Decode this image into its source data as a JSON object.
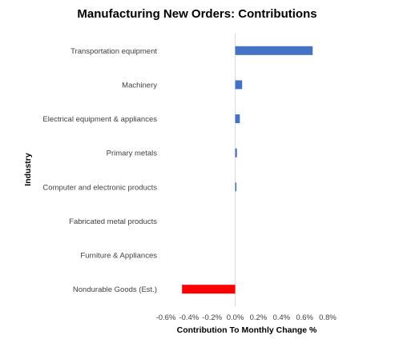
{
  "chart_data": {
    "type": "bar",
    "orientation": "horizontal",
    "title": "Manufacturing New Orders: Contributions",
    "xlabel": "Contribution To Monthly Change %",
    "ylabel": "Industry",
    "categories": [
      "Transportation equipment",
      "Machinery",
      "Electrical equipment & appliances",
      "Primary metals",
      "Computer and electronic products",
      "Fabricated metal products",
      "Furniture & Appliances",
      "Nondurable Goods (Est.)"
    ],
    "values": [
      0.67,
      0.06,
      0.04,
      0.015,
      0.01,
      0.0,
      0.0,
      -0.46
    ],
    "bar_colors": [
      "#4472C4",
      "#4472C4",
      "#4472C4",
      "#4472C4",
      "#4472C4",
      "#4472C4",
      "#4472C4",
      "#FF0000"
    ],
    "xlim": [
      -0.6,
      0.8
    ],
    "xticks": [
      -0.6,
      -0.4,
      -0.2,
      0.0,
      0.2,
      0.4,
      0.6,
      0.8
    ],
    "xtick_labels": [
      "-0.6%",
      "-0.4%",
      "-0.2%",
      "0.0%",
      "0.2%",
      "0.4%",
      "0.6%",
      "0.8%"
    ],
    "grid": false,
    "legend": "none"
  }
}
